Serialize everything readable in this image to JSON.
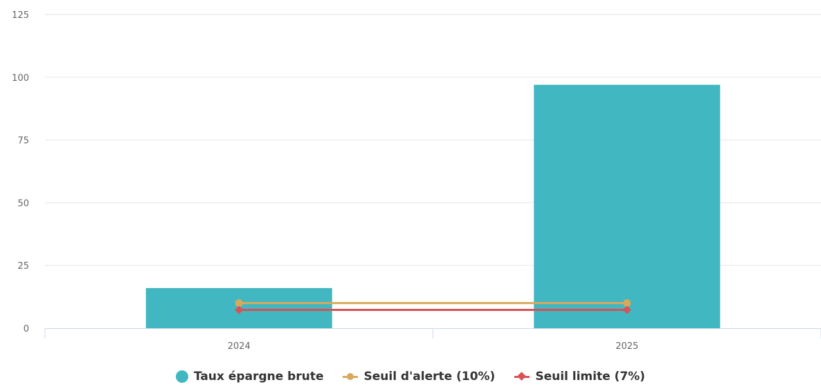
{
  "chart_data": {
    "type": "bar",
    "categories": [
      "2024",
      "2025"
    ],
    "title": "",
    "xlabel": "",
    "ylabel": "",
    "ylim": [
      0,
      125
    ],
    "yticks": [
      "0",
      "25",
      "50",
      "75",
      "100",
      "125"
    ],
    "grid": true,
    "legend_position": "bottom-center",
    "series": [
      {
        "name": "Taux épargne brute",
        "type": "bar",
        "color": "#41b7c1",
        "values": [
          16,
          97
        ]
      },
      {
        "name": "Seuil d'alerte (10%)",
        "type": "line",
        "marker": "circle",
        "color": "#d9a95b",
        "values": [
          10,
          10
        ]
      },
      {
        "name": "Seuil limite (7%)",
        "type": "line",
        "marker": "diamond",
        "color": "#d95255",
        "values": [
          7.3,
          7.3
        ]
      }
    ]
  }
}
